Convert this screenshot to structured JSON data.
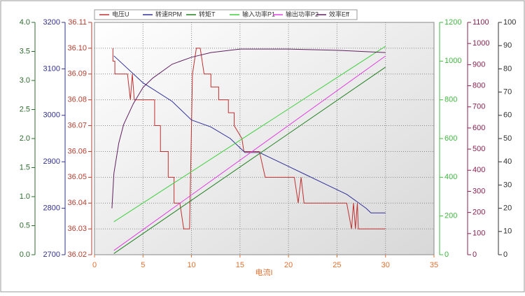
{
  "chart_data": {
    "type": "line",
    "x_label": "电流I",
    "xlim": [
      0,
      35
    ],
    "xticks": [
      0,
      5,
      10,
      15,
      20,
      25,
      30,
      35
    ],
    "grid": true,
    "axes": [
      {
        "side": "left",
        "color": "#2e6b2e",
        "lim": [
          0,
          4
        ],
        "ticks": [
          {
            "value": 0,
            "label": "0.0"
          },
          {
            "value": 0.5,
            "label": "0.5"
          },
          {
            "value": 1,
            "label": "1.0"
          },
          {
            "value": 1.5,
            "label": "1.5"
          },
          {
            "value": 2,
            "label": "2.0"
          },
          {
            "value": 2.5,
            "label": "2.5"
          },
          {
            "value": 3,
            "label": "3.0"
          },
          {
            "value": 3.5,
            "label": "3.5"
          },
          {
            "value": 4,
            "label": "4.0"
          }
        ]
      },
      {
        "side": "left",
        "color": "#30308a",
        "lim": [
          2700,
          3200
        ],
        "ticks": [
          2700,
          2800,
          2900,
          3000,
          3100,
          3200
        ]
      },
      {
        "side": "left",
        "color": "#b04030",
        "lim": [
          36.02,
          36.11
        ],
        "ticks": [
          36.02,
          36.03,
          36.04,
          36.05,
          36.06,
          36.07,
          36.08,
          36.09,
          {
            "value": 36.1,
            "label": "36.10"
          },
          36.11
        ]
      },
      {
        "side": "right",
        "color": "#40b840",
        "lim": [
          0,
          1200
        ],
        "ticks": [
          0,
          200,
          400,
          600,
          800,
          1000,
          1200
        ]
      },
      {
        "side": "right",
        "color": "#8a2050",
        "lim": [
          0,
          1100
        ],
        "ticks": [
          0,
          100,
          200,
          300,
          400,
          500,
          600,
          700,
          800,
          900,
          1000,
          1100
        ]
      },
      {
        "side": "right",
        "color": "#303030",
        "lim": [
          0,
          100
        ],
        "ticks": [
          0,
          10,
          20,
          30,
          40,
          50,
          60,
          70,
          80,
          90,
          100
        ]
      }
    ],
    "series": [
      {
        "name": "电压U",
        "color": "#c03030",
        "axis": 2,
        "x": [
          1.9,
          1.9,
          2.1,
          2.1,
          3.4,
          3.7,
          3.9,
          4.1,
          6.2,
          6.2,
          6.8,
          6.8,
          7.6,
          7.6,
          8.2,
          8.2,
          8.8,
          9.2,
          9.8,
          10.1,
          10.5,
          10.9,
          11.3,
          12.0,
          12.0,
          12.8,
          12.8,
          13.8,
          13.8,
          14.4,
          14.4,
          15.2,
          15.4,
          17.0,
          17.6,
          20.6,
          21.0,
          21.3,
          21.6,
          26.0,
          26.5,
          26.7,
          26.9,
          27.1,
          27.2,
          30.0
        ],
        "values": [
          36.1,
          36.095,
          36.095,
          36.09,
          36.09,
          36.08,
          36.09,
          36.08,
          36.08,
          36.07,
          36.07,
          36.06,
          36.06,
          36.05,
          36.05,
          36.04,
          36.04,
          36.03,
          36.03,
          36.09,
          36.1,
          36.1,
          36.09,
          36.09,
          36.085,
          36.085,
          36.08,
          36.08,
          36.075,
          36.075,
          36.07,
          36.065,
          36.06,
          36.06,
          36.05,
          36.05,
          36.04,
          36.05,
          36.04,
          36.04,
          36.03,
          36.04,
          36.03,
          36.04,
          36.03,
          36.03
        ]
      },
      {
        "name": "转速RPM",
        "color": "#30309a",
        "axis": 1,
        "x": [
          2,
          5,
          8,
          10,
          12,
          14,
          15.5,
          17,
          18,
          20,
          22,
          24,
          26,
          28,
          28.5,
          30
        ],
        "values": [
          3128,
          3070,
          3030,
          2990,
          2975,
          2950,
          2920,
          2920,
          2910,
          2890,
          2870,
          2850,
          2830,
          2800,
          2790,
          2790
        ]
      },
      {
        "name": "转矩T",
        "color": "#208020",
        "axis": 0,
        "x": [
          2,
          30
        ],
        "values": [
          0.02,
          3.23
        ]
      },
      {
        "name": "输入功率P1",
        "color": "#40d040",
        "axis": 3,
        "x": [
          2,
          30
        ],
        "values": [
          170,
          1077
        ]
      },
      {
        "name": "输出功率P2",
        "color": "#e040e0",
        "axis": 4,
        "x": [
          2,
          30
        ],
        "values": [
          20,
          941
        ]
      },
      {
        "name": "效率Eff",
        "color": "#602060",
        "axis": 5,
        "x": [
          1.8,
          2,
          2.5,
          3,
          4,
          5,
          6,
          8,
          10,
          12,
          15,
          20,
          25,
          30
        ],
        "values": [
          20,
          35,
          48,
          56,
          65,
          72,
          76,
          82,
          85,
          87,
          88.5,
          88.5,
          88,
          87
        ]
      }
    ]
  }
}
